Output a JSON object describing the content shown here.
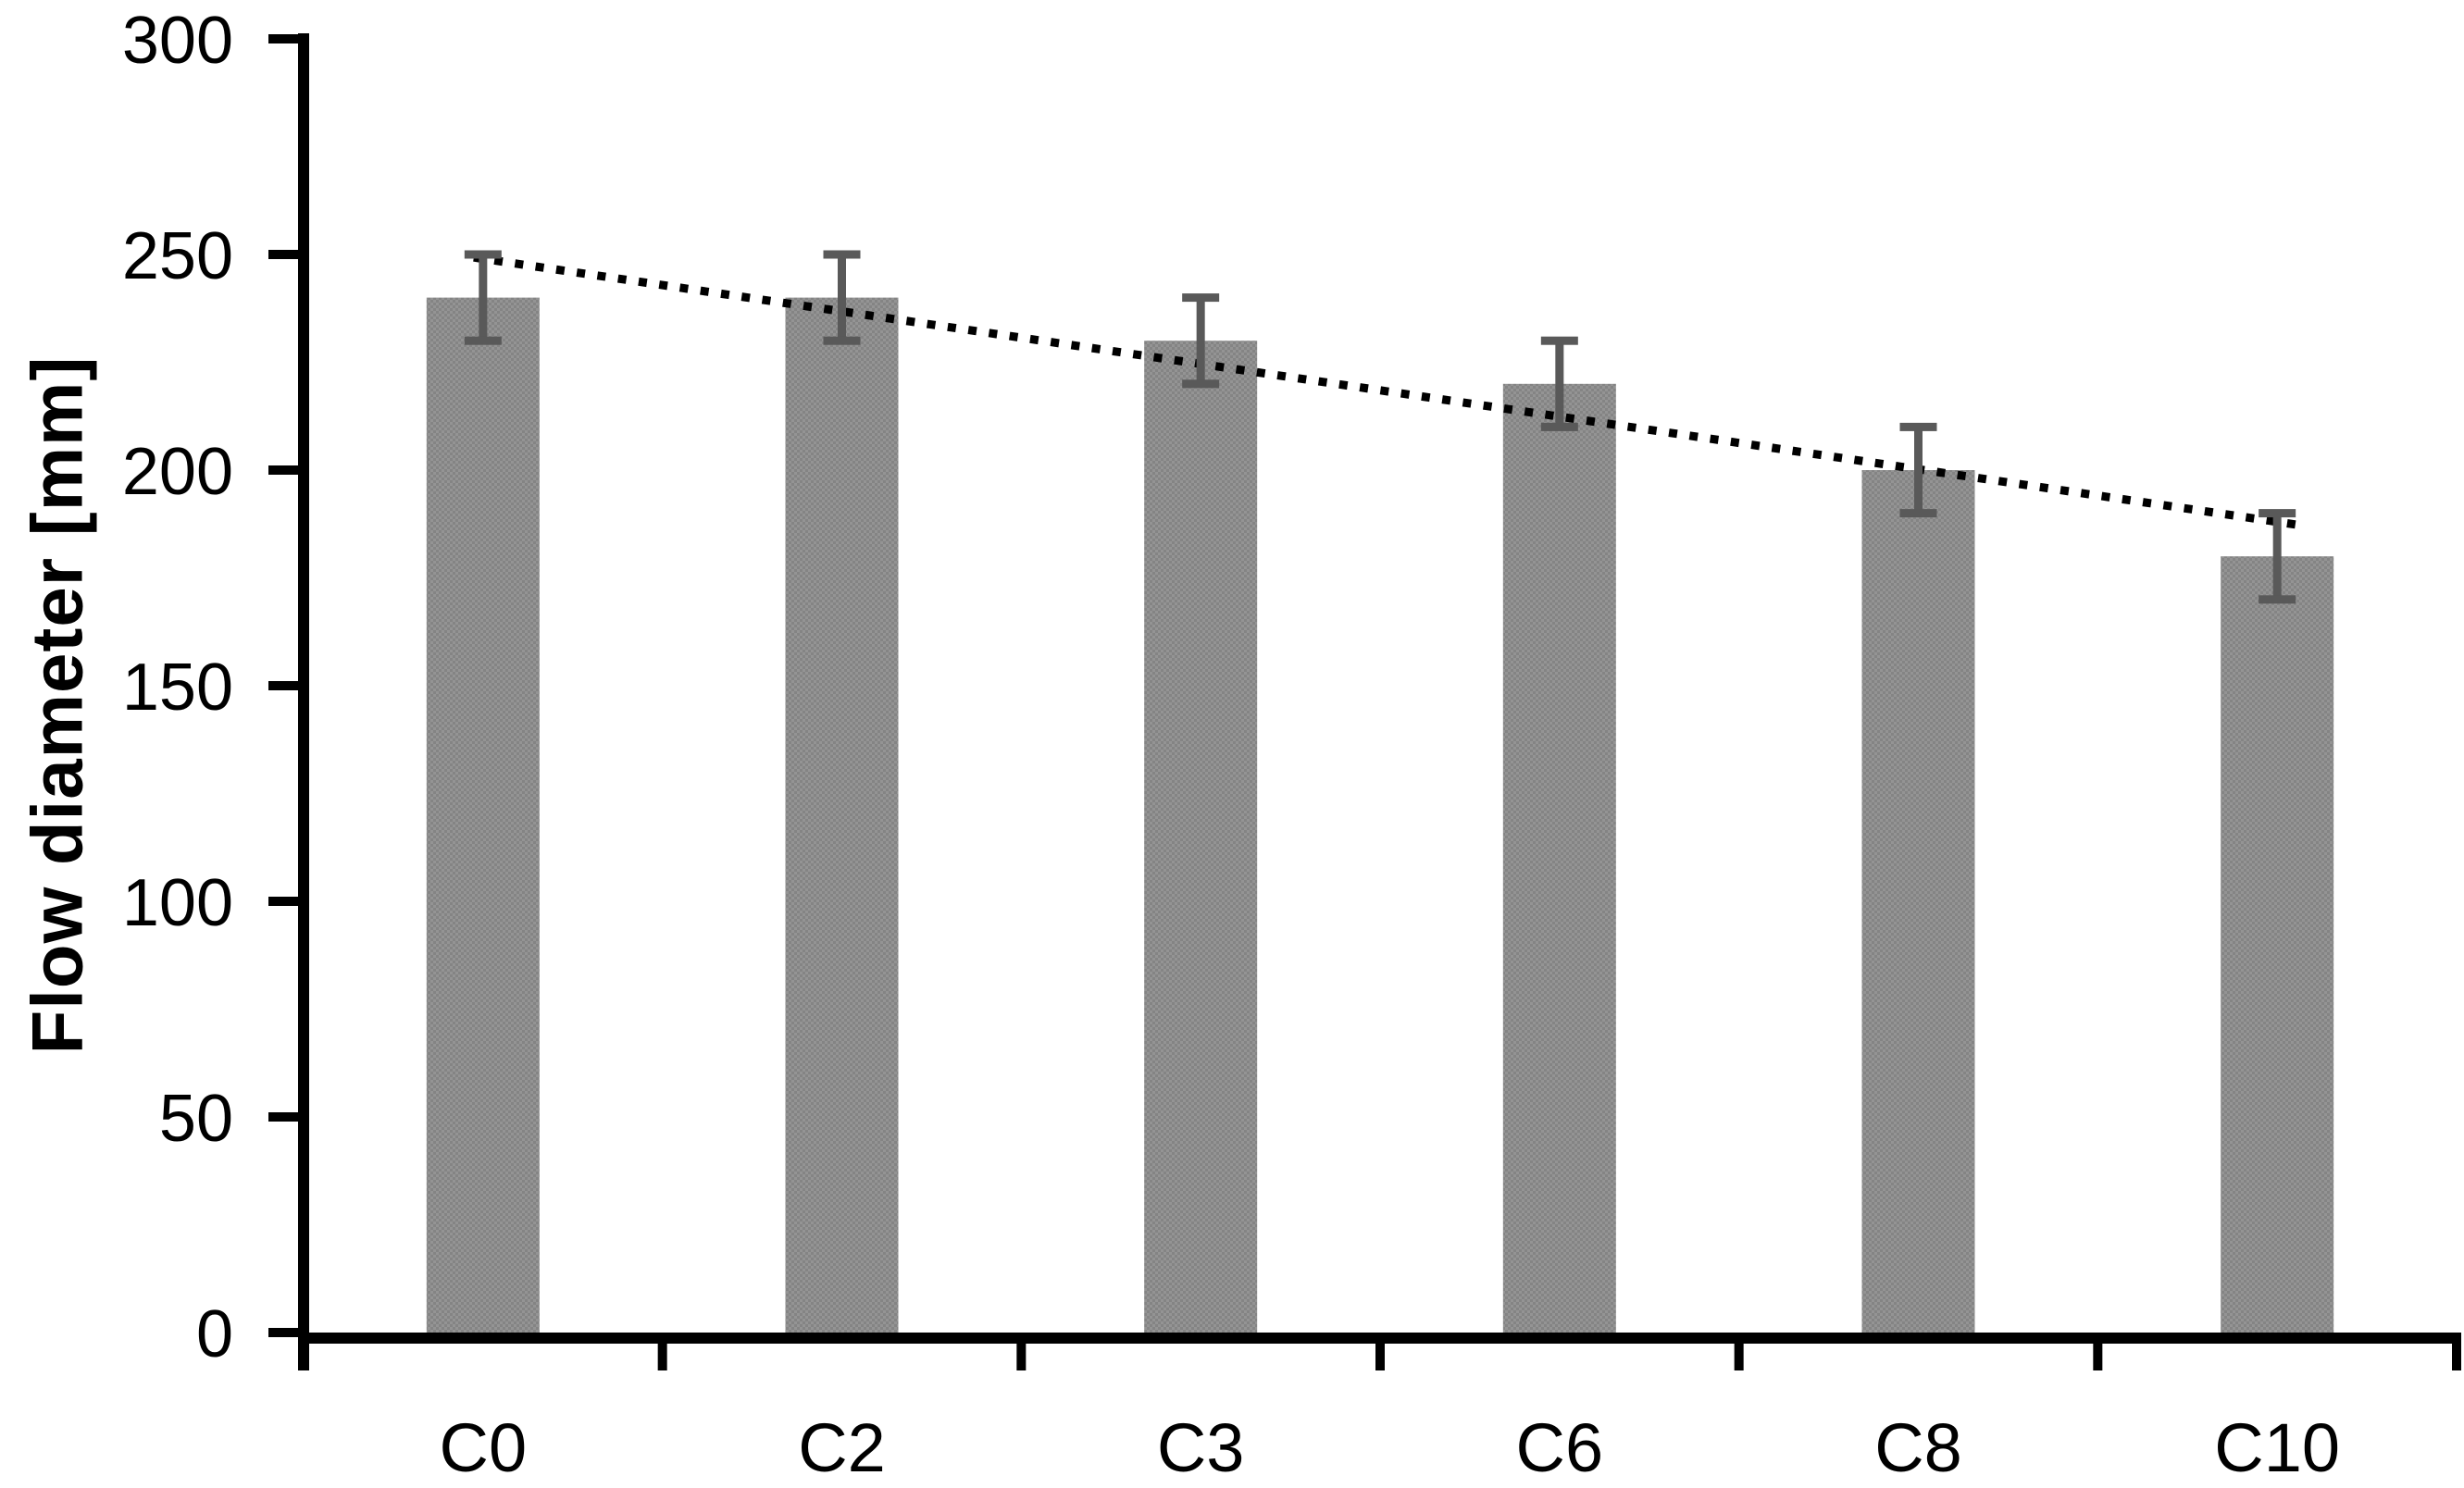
{
  "chart_data": {
    "type": "bar",
    "title": "",
    "ylabel": "Flow diameter [mm]",
    "xlabel": "",
    "categories": [
      "C0",
      "C2",
      "C3",
      "C6",
      "C8",
      "C10"
    ],
    "values": [
      240,
      240,
      230,
      220,
      200,
      180
    ],
    "error_bars": {
      "type": "symmetric",
      "values": [
        10,
        10,
        10,
        10,
        10,
        10
      ]
    },
    "y_ticks": [
      0,
      50,
      100,
      150,
      200,
      250,
      300
    ],
    "ylim": [
      0,
      300
    ],
    "grid": false,
    "legend": false,
    "trendline": {
      "type": "linear",
      "style": "dotted",
      "value_at_first_category": 249,
      "value_at_last_category": 188
    },
    "colors": {
      "bar_fill": "#8b8b8b",
      "bar_dither_dark": "#848484",
      "bar_dither_light": "#949494",
      "error_bar": "#595959",
      "trendline": "#000000",
      "axis": "#000000",
      "text": "#000000",
      "background": "#ffffff"
    }
  }
}
